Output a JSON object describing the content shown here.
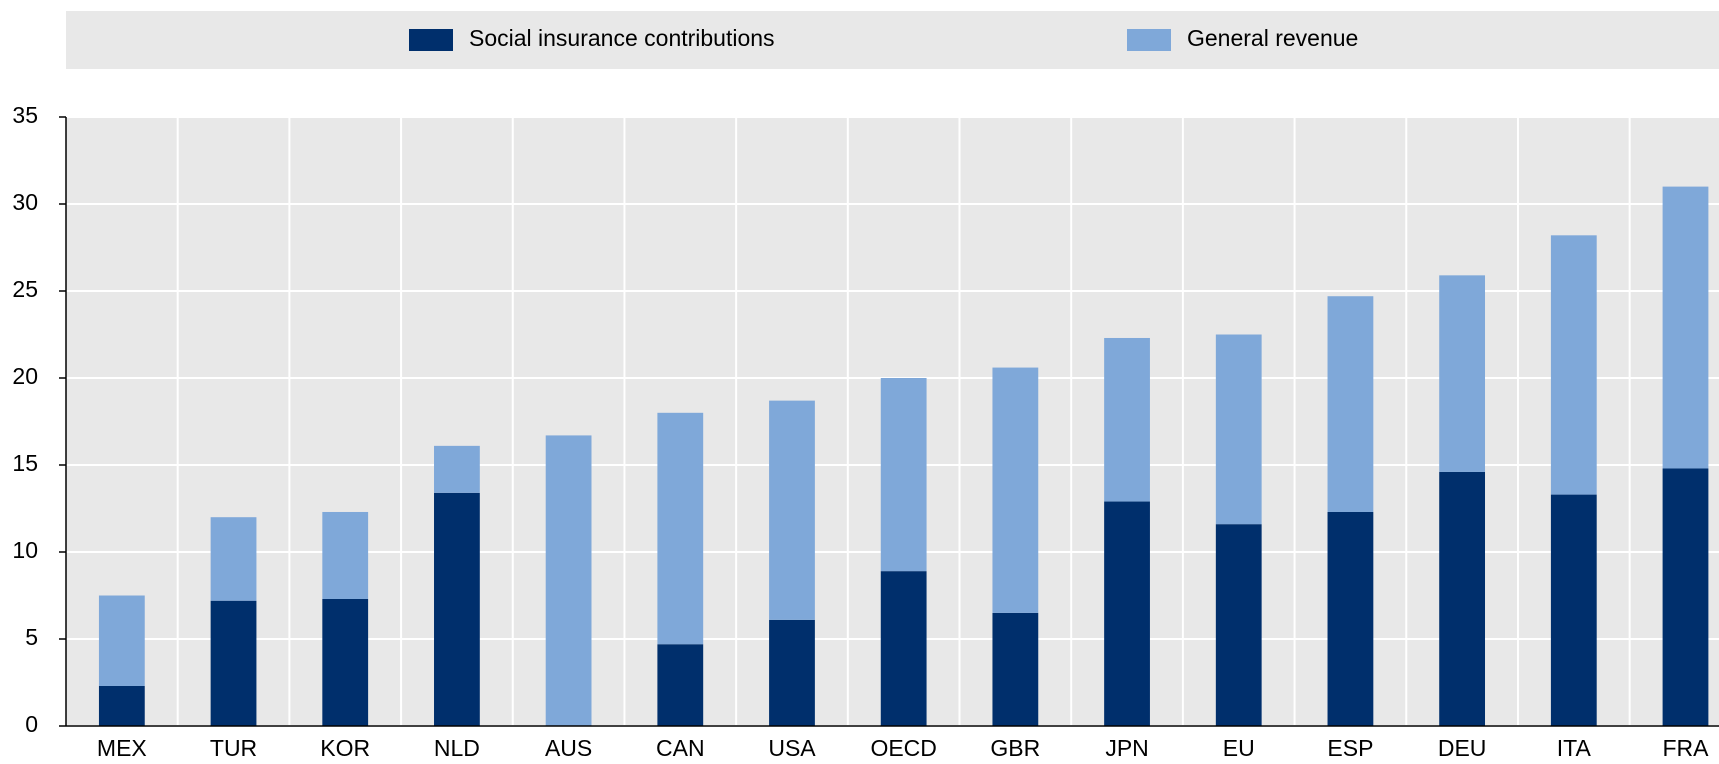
{
  "chart_data": {
    "type": "stacked_bar",
    "categories": [
      "MEX",
      "TUR",
      "KOR",
      "NLD",
      "AUS",
      "CAN",
      "USA",
      "OECD",
      "GBR",
      "JPN",
      "EU",
      "ESP",
      "DEU",
      "ITA",
      "FRA"
    ],
    "series": [
      {
        "name": "Social insurance contributions",
        "color": "#002f6c",
        "values": [
          2.3,
          7.2,
          7.3,
          13.4,
          0,
          4.7,
          6.1,
          8.9,
          6.5,
          12.9,
          11.6,
          12.3,
          14.6,
          13.3,
          14.8
        ]
      },
      {
        "name": "General revenue",
        "color": "#7fa8d9",
        "values": [
          5.2,
          4.8,
          5.0,
          2.7,
          16.7,
          13.3,
          12.6,
          11.1,
          14.1,
          9.4,
          10.9,
          12.4,
          11.3,
          14.9,
          16.2
        ]
      }
    ],
    "ylim": [
      0,
      35
    ],
    "yticks": [
      0,
      5,
      10,
      15,
      20,
      25,
      30,
      35
    ],
    "grid": true
  }
}
